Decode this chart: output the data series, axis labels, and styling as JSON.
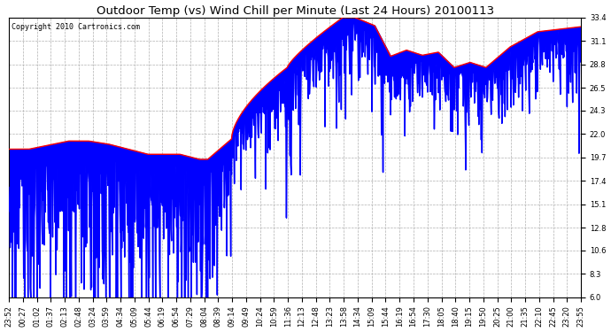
{
  "title": "Outdoor Temp (vs) Wind Chill per Minute (Last 24 Hours) 20100113",
  "copyright_text": "Copyright 2010 Cartronics.com",
  "ylim": [
    6.0,
    33.4
  ],
  "yticks": [
    6.0,
    8.3,
    10.6,
    12.8,
    15.1,
    17.4,
    19.7,
    22.0,
    24.3,
    26.5,
    28.8,
    31.1,
    33.4
  ],
  "xtick_labels": [
    "23:52",
    "00:27",
    "01:02",
    "01:37",
    "02:13",
    "02:48",
    "03:24",
    "03:59",
    "04:34",
    "05:09",
    "05:44",
    "06:19",
    "06:54",
    "07:29",
    "08:04",
    "08:39",
    "09:14",
    "09:49",
    "10:24",
    "10:59",
    "11:36",
    "12:13",
    "12:48",
    "13:23",
    "13:58",
    "14:34",
    "15:09",
    "15:44",
    "16:19",
    "16:54",
    "17:30",
    "18:05",
    "18:40",
    "19:15",
    "19:50",
    "20:25",
    "21:00",
    "21:35",
    "22:10",
    "22:45",
    "23:20",
    "23:55"
  ],
  "background_color": "#ffffff",
  "plot_bg_color": "#ffffff",
  "grid_color": "#b0b0b0",
  "blue_fill_color": "#0000ff",
  "red_line_color": "#ff0000",
  "title_fontsize": 9.5,
  "tick_fontsize": 6.0,
  "copyright_fontsize": 6.0
}
